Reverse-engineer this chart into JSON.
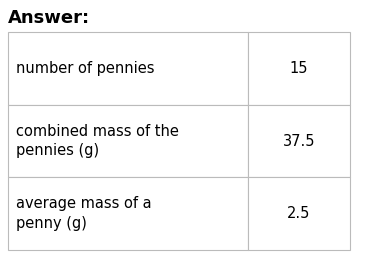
{
  "title": "Answer:",
  "title_fontsize": 13,
  "title_fontweight": "bold",
  "rows": [
    {
      "label": "number of pennies",
      "value": "15"
    },
    {
      "label": "combined mass of the\npennies (g)",
      "value": "37.5"
    },
    {
      "label": "average mass of a\npenny (g)",
      "value": "2.5"
    }
  ],
  "label_fontsize": 10.5,
  "value_fontsize": 10.5,
  "background_color": "#ffffff",
  "table_border_color": "#bbbbbb",
  "cell_bg_color": "#ffffff",
  "fig_width": 3.66,
  "fig_height": 2.78,
  "fig_dpi": 100
}
